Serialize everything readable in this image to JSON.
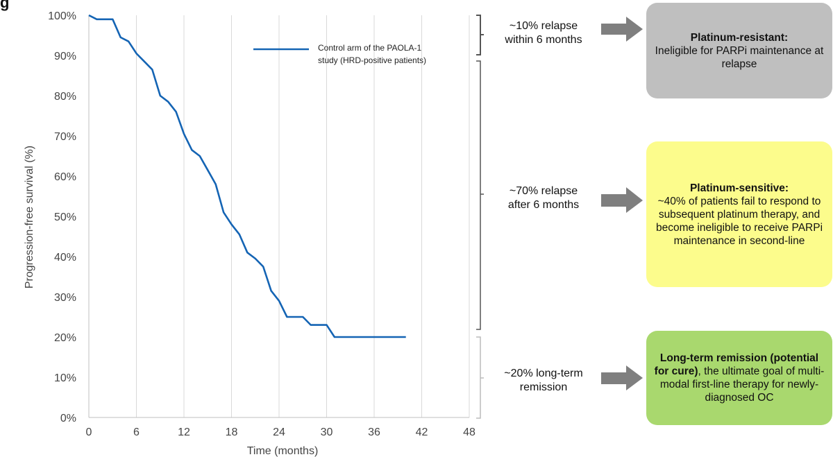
{
  "title": "g",
  "chart_data": {
    "type": "line",
    "title": "",
    "xlabel": "Time (months)",
    "ylabel": "Progression-free survival (%)",
    "xlim": [
      0,
      48
    ],
    "ylim": [
      0,
      100
    ],
    "xticks": [
      0,
      6,
      12,
      18,
      24,
      30,
      36,
      42,
      48
    ],
    "yticks": [
      0,
      10,
      20,
      30,
      40,
      50,
      60,
      70,
      80,
      90,
      100
    ],
    "ytick_labels": [
      "0%",
      "10%",
      "20%",
      "30%",
      "40%",
      "50%",
      "60%",
      "70%",
      "80%",
      "90%",
      "100%"
    ],
    "grid": "vertical",
    "legend_position": "top-right",
    "series": [
      {
        "name": "Control arm of the PAOLA-1 study (HRD-positive patients)",
        "color": "#1464b4",
        "points": [
          [
            0,
            100
          ],
          [
            1,
            99
          ],
          [
            2,
            99
          ],
          [
            3,
            99
          ],
          [
            4,
            94.5
          ],
          [
            5,
            93.5
          ],
          [
            6,
            90.5
          ],
          [
            7,
            88.5
          ],
          [
            8,
            86.5
          ],
          [
            9,
            80
          ],
          [
            10,
            78.5
          ],
          [
            11,
            76
          ],
          [
            12,
            70.5
          ],
          [
            13,
            66.5
          ],
          [
            14,
            65
          ],
          [
            15,
            61.5
          ],
          [
            16,
            58
          ],
          [
            17,
            51
          ],
          [
            18,
            48
          ],
          [
            19,
            45.5
          ],
          [
            20,
            41
          ],
          [
            21,
            39.5
          ],
          [
            22,
            37.5
          ],
          [
            23,
            31.5
          ],
          [
            24,
            29
          ],
          [
            25,
            25
          ],
          [
            26,
            25
          ],
          [
            27,
            25
          ],
          [
            28,
            23
          ],
          [
            29,
            23
          ],
          [
            30,
            23
          ],
          [
            31,
            20
          ],
          [
            35,
            20
          ],
          [
            40,
            20
          ]
        ]
      }
    ]
  },
  "groups": [
    {
      "label": "~10% relapse within 6 months"
    },
    {
      "label": "~70% relapse after 6 months"
    },
    {
      "label": "~20% long-term remission"
    }
  ],
  "outcomes": [
    {
      "bold": "Platinum-resistant:",
      "text": "Ineligible for PARPi maintenance at relapse",
      "color": "#bfbfbf"
    },
    {
      "bold": "Platinum-sensitive:",
      "text": "~40% of patients fail to respond to subsequent platinum therapy, and become ineligible to receive PARPi maintenance in second-line",
      "color": "#fcfc8c"
    },
    {
      "bold": "Long-term remission (potential for cure)",
      "text": ", the ultimate goal of multi-modal first-line therapy for newly-diagnosed OC",
      "color": "#a9d86e"
    }
  ],
  "colors": {
    "bracket": "#555555",
    "bracket_light": "#bbbbbb",
    "arrow": "#7f7f7f",
    "grid": "#d9d9d9",
    "axis": "#bfbfbf"
  }
}
